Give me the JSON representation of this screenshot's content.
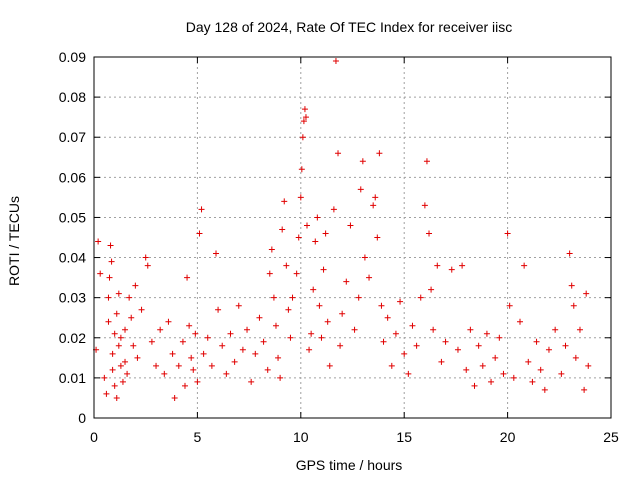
{
  "chart_data": {
    "type": "scatter",
    "title": "Day 128 of 2024, Rate Of TEC Index for receiver iisc",
    "xlabel": "GPS time / hours",
    "ylabel": "ROTI / TECUs",
    "xlim": [
      0,
      25
    ],
    "ylim": [
      0,
      0.09
    ],
    "xticks": [
      "0",
      "5",
      "10",
      "15",
      "20",
      "25"
    ],
    "yticks": [
      "0",
      "0.01",
      "0.02",
      "0.03",
      "0.04",
      "0.05",
      "0.06",
      "0.07",
      "0.08",
      "0.09"
    ],
    "grid": true,
    "marker": "plus",
    "color": "#e00000",
    "series": [
      {
        "values": [
          [
            0.1,
            0.017
          ],
          [
            0.2,
            0.044
          ],
          [
            0.3,
            0.036
          ],
          [
            0.5,
            0.01
          ],
          [
            0.6,
            0.006
          ],
          [
            0.7,
            0.03
          ],
          [
            0.7,
            0.024
          ],
          [
            0.75,
            0.035
          ],
          [
            0.8,
            0.043
          ],
          [
            0.85,
            0.039
          ],
          [
            0.9,
            0.016
          ],
          [
            0.9,
            0.012
          ],
          [
            1.0,
            0.021
          ],
          [
            1.0,
            0.008
          ],
          [
            1.1,
            0.026
          ],
          [
            1.1,
            0.005
          ],
          [
            1.2,
            0.031
          ],
          [
            1.2,
            0.018
          ],
          [
            1.3,
            0.013
          ],
          [
            1.3,
            0.02
          ],
          [
            1.4,
            0.009
          ],
          [
            1.5,
            0.022
          ],
          [
            1.5,
            0.014
          ],
          [
            1.6,
            0.011
          ],
          [
            1.7,
            0.03
          ],
          [
            1.8,
            0.025
          ],
          [
            1.9,
            0.018
          ],
          [
            2.0,
            0.033
          ],
          [
            2.1,
            0.015
          ],
          [
            2.3,
            0.027
          ],
          [
            2.5,
            0.04
          ],
          [
            2.6,
            0.038
          ],
          [
            2.8,
            0.019
          ],
          [
            3.0,
            0.013
          ],
          [
            3.2,
            0.022
          ],
          [
            3.4,
            0.011
          ],
          [
            3.6,
            0.024
          ],
          [
            3.8,
            0.016
          ],
          [
            3.9,
            0.005
          ],
          [
            4.1,
            0.013
          ],
          [
            4.3,
            0.019
          ],
          [
            4.4,
            0.008
          ],
          [
            4.5,
            0.035
          ],
          [
            4.6,
            0.023
          ],
          [
            4.7,
            0.015
          ],
          [
            4.8,
            0.012
          ],
          [
            4.9,
            0.021
          ],
          [
            5.0,
            0.009
          ],
          [
            5.1,
            0.046
          ],
          [
            5.2,
            0.052
          ],
          [
            5.3,
            0.016
          ],
          [
            5.5,
            0.02
          ],
          [
            5.7,
            0.013
          ],
          [
            5.9,
            0.041
          ],
          [
            6.0,
            0.027
          ],
          [
            6.2,
            0.018
          ],
          [
            6.4,
            0.011
          ],
          [
            6.6,
            0.021
          ],
          [
            6.8,
            0.014
          ],
          [
            7.0,
            0.028
          ],
          [
            7.2,
            0.017
          ],
          [
            7.4,
            0.022
          ],
          [
            7.6,
            0.009
          ],
          [
            7.8,
            0.016
          ],
          [
            8.0,
            0.025
          ],
          [
            8.2,
            0.019
          ],
          [
            8.4,
            0.012
          ],
          [
            8.5,
            0.036
          ],
          [
            8.6,
            0.042
          ],
          [
            8.7,
            0.03
          ],
          [
            8.8,
            0.023
          ],
          [
            8.9,
            0.015
          ],
          [
            9.0,
            0.01
          ],
          [
            9.1,
            0.047
          ],
          [
            9.2,
            0.054
          ],
          [
            9.3,
            0.038
          ],
          [
            9.4,
            0.027
          ],
          [
            9.5,
            0.02
          ],
          [
            9.6,
            0.03
          ],
          [
            9.8,
            0.036
          ],
          [
            9.9,
            0.045
          ],
          [
            10.0,
            0.055
          ],
          [
            10.05,
            0.062
          ],
          [
            10.1,
            0.07
          ],
          [
            10.15,
            0.074
          ],
          [
            10.2,
            0.077
          ],
          [
            10.25,
            0.075
          ],
          [
            10.3,
            0.048
          ],
          [
            10.4,
            0.017
          ],
          [
            10.5,
            0.021
          ],
          [
            10.6,
            0.032
          ],
          [
            10.7,
            0.044
          ],
          [
            10.8,
            0.05
          ],
          [
            10.9,
            0.028
          ],
          [
            11.0,
            0.02
          ],
          [
            11.1,
            0.037
          ],
          [
            11.2,
            0.046
          ],
          [
            11.3,
            0.024
          ],
          [
            11.4,
            0.013
          ],
          [
            11.6,
            0.052
          ],
          [
            11.7,
            0.089
          ],
          [
            11.8,
            0.066
          ],
          [
            11.9,
            0.018
          ],
          [
            12.0,
            0.026
          ],
          [
            12.2,
            0.034
          ],
          [
            12.4,
            0.048
          ],
          [
            12.6,
            0.022
          ],
          [
            12.8,
            0.03
          ],
          [
            12.9,
            0.057
          ],
          [
            13.0,
            0.064
          ],
          [
            13.1,
            0.04
          ],
          [
            13.3,
            0.035
          ],
          [
            13.5,
            0.053
          ],
          [
            13.6,
            0.055
          ],
          [
            13.7,
            0.045
          ],
          [
            13.8,
            0.066
          ],
          [
            13.9,
            0.028
          ],
          [
            14.0,
            0.019
          ],
          [
            14.2,
            0.025
          ],
          [
            14.4,
            0.013
          ],
          [
            14.6,
            0.021
          ],
          [
            14.8,
            0.029
          ],
          [
            15.0,
            0.016
          ],
          [
            15.2,
            0.011
          ],
          [
            15.4,
            0.023
          ],
          [
            15.6,
            0.018
          ],
          [
            15.8,
            0.03
          ],
          [
            16.0,
            0.053
          ],
          [
            16.1,
            0.064
          ],
          [
            16.2,
            0.046
          ],
          [
            16.3,
            0.032
          ],
          [
            16.4,
            0.022
          ],
          [
            16.6,
            0.038
          ],
          [
            16.8,
            0.014
          ],
          [
            17.0,
            0.019
          ],
          [
            17.3,
            0.037
          ],
          [
            17.6,
            0.017
          ],
          [
            17.8,
            0.038
          ],
          [
            18.0,
            0.012
          ],
          [
            18.2,
            0.022
          ],
          [
            18.4,
            0.008
          ],
          [
            18.6,
            0.018
          ],
          [
            18.8,
            0.013
          ],
          [
            19.0,
            0.021
          ],
          [
            19.2,
            0.009
          ],
          [
            19.4,
            0.015
          ],
          [
            19.6,
            0.02
          ],
          [
            19.8,
            0.011
          ],
          [
            20.0,
            0.046
          ],
          [
            20.1,
            0.028
          ],
          [
            20.3,
            0.01
          ],
          [
            20.6,
            0.024
          ],
          [
            20.8,
            0.038
          ],
          [
            21.0,
            0.014
          ],
          [
            21.2,
            0.009
          ],
          [
            21.4,
            0.019
          ],
          [
            21.6,
            0.012
          ],
          [
            21.8,
            0.007
          ],
          [
            22.0,
            0.017
          ],
          [
            22.3,
            0.022
          ],
          [
            22.6,
            0.011
          ],
          [
            22.8,
            0.018
          ],
          [
            23.0,
            0.041
          ],
          [
            23.1,
            0.033
          ],
          [
            23.2,
            0.028
          ],
          [
            23.3,
            0.015
          ],
          [
            23.5,
            0.022
          ],
          [
            23.7,
            0.007
          ],
          [
            23.8,
            0.031
          ],
          [
            23.9,
            0.013
          ]
        ]
      }
    ]
  }
}
